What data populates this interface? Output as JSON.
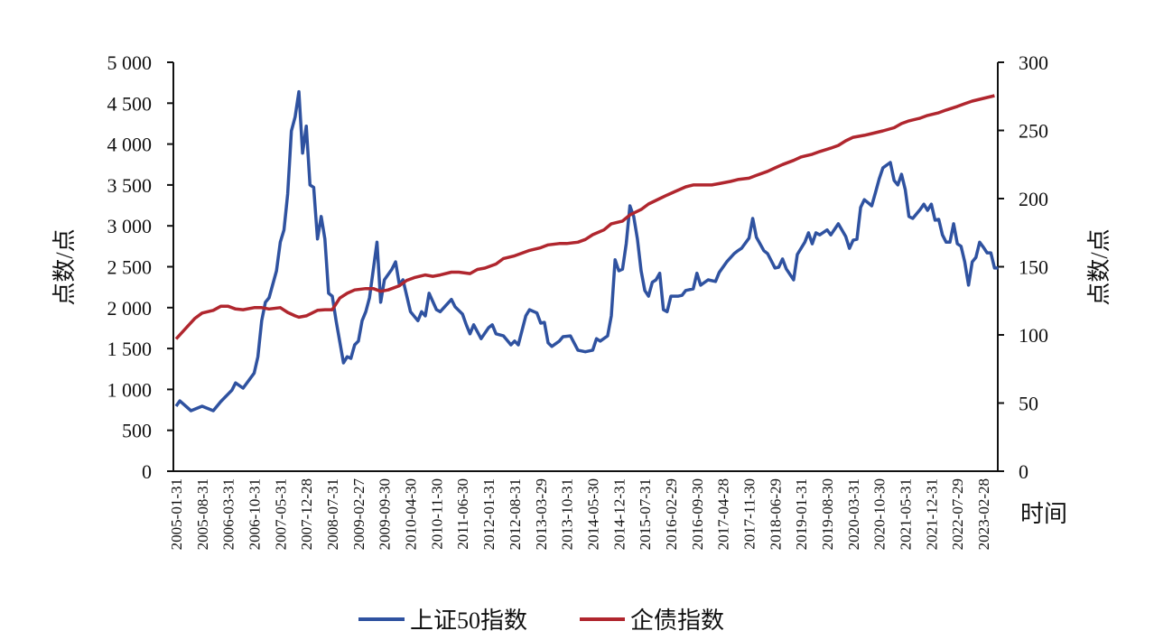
{
  "chart_data": {
    "type": "line",
    "title": "",
    "xlabel": "时间",
    "ylabel_left": "点数/点",
    "ylabel_right": "点数/点",
    "ylim_left": [
      0,
      5000
    ],
    "ylim_right": [
      0,
      300
    ],
    "xlim": [
      "2005-01",
      "2023-06"
    ],
    "grid": false,
    "legend_position": "bottom",
    "yticks_left": [
      "0",
      "500",
      "1 000",
      "1 500",
      "2 000",
      "2 500",
      "3 000",
      "3 500",
      "4 000",
      "4 500",
      "5 000"
    ],
    "yticks_right": [
      "0",
      "50",
      "100",
      "150",
      "200",
      "250",
      "300"
    ],
    "xticks": [
      "2005-01-31",
      "2005-08-31",
      "2006-03-31",
      "2006-10-31",
      "2007-05-31",
      "2007-12-28",
      "2008-07-31",
      "2009-02-27",
      "2009-09-30",
      "2010-04-30",
      "2010-11-30",
      "2011-06-30",
      "2012-01-31",
      "2012-08-31",
      "2013-03-29",
      "2013-10-31",
      "2014-05-30",
      "2014-12-31",
      "2015-07-31",
      "2016-02-29",
      "2016-09-30",
      "2017-04-28",
      "2017-11-30",
      "2018-06-29",
      "2019-01-31",
      "2019-08-30",
      "2020-03-31",
      "2020-10-30",
      "2021-05-31",
      "2021-12-31",
      "2022-07-29",
      "2023-02-28"
    ],
    "series": [
      {
        "name": "上证50指数",
        "axis": "left",
        "color": "#2f52a0",
        "points": [
          [
            "2005-01",
            795
          ],
          [
            "2005-02",
            860
          ],
          [
            "2005-05",
            740
          ],
          [
            "2005-08",
            795
          ],
          [
            "2005-11",
            740
          ],
          [
            "2006-01",
            850
          ],
          [
            "2006-04",
            990
          ],
          [
            "2006-05",
            1080
          ],
          [
            "2006-07",
            1015
          ],
          [
            "2006-10",
            1200
          ],
          [
            "2006-11",
            1400
          ],
          [
            "2006-12",
            1840
          ],
          [
            "2007-01",
            2065
          ],
          [
            "2007-02",
            2120
          ],
          [
            "2007-04",
            2450
          ],
          [
            "2007-05",
            2800
          ],
          [
            "2007-06",
            2950
          ],
          [
            "2007-07",
            3390
          ],
          [
            "2007-08",
            4160
          ],
          [
            "2007-09",
            4330
          ],
          [
            "2007-10",
            4640
          ],
          [
            "2007-11",
            3890
          ],
          [
            "2007-12",
            4220
          ],
          [
            "2008-01",
            3500
          ],
          [
            "2008-02",
            3470
          ],
          [
            "2008-03",
            2840
          ],
          [
            "2008-04",
            3115
          ],
          [
            "2008-05",
            2840
          ],
          [
            "2008-06",
            2175
          ],
          [
            "2008-07",
            2140
          ],
          [
            "2008-08",
            1840
          ],
          [
            "2008-10",
            1325
          ],
          [
            "2008-11",
            1400
          ],
          [
            "2008-12",
            1380
          ],
          [
            "2009-01",
            1545
          ],
          [
            "2009-02",
            1590
          ],
          [
            "2009-03",
            1840
          ],
          [
            "2009-04",
            1950
          ],
          [
            "2009-05",
            2120
          ],
          [
            "2009-07",
            2800
          ],
          [
            "2009-08",
            2065
          ],
          [
            "2009-09",
            2340
          ],
          [
            "2009-11",
            2470
          ],
          [
            "2009-12",
            2560
          ],
          [
            "2010-01",
            2285
          ],
          [
            "2010-02",
            2340
          ],
          [
            "2010-04",
            1950
          ],
          [
            "2010-06",
            1840
          ],
          [
            "2010-07",
            1950
          ],
          [
            "2010-08",
            1900
          ],
          [
            "2010-09",
            2175
          ],
          [
            "2010-11",
            1975
          ],
          [
            "2010-12",
            1950
          ],
          [
            "2011-03",
            2100
          ],
          [
            "2011-04",
            2010
          ],
          [
            "2011-06",
            1920
          ],
          [
            "2011-07",
            1790
          ],
          [
            "2011-08",
            1680
          ],
          [
            "2011-09",
            1790
          ],
          [
            "2011-11",
            1620
          ],
          [
            "2012-01",
            1755
          ],
          [
            "2012-02",
            1790
          ],
          [
            "2012-03",
            1680
          ],
          [
            "2012-05",
            1655
          ],
          [
            "2012-07",
            1545
          ],
          [
            "2012-08",
            1590
          ],
          [
            "2012-09",
            1545
          ],
          [
            "2012-11",
            1900
          ],
          [
            "2012-12",
            1975
          ],
          [
            "2013-02",
            1935
          ],
          [
            "2013-03",
            1810
          ],
          [
            "2013-04",
            1820
          ],
          [
            "2013-05",
            1570
          ],
          [
            "2013-06",
            1525
          ],
          [
            "2013-08",
            1590
          ],
          [
            "2013-09",
            1645
          ],
          [
            "2013-11",
            1655
          ],
          [
            "2014-01",
            1480
          ],
          [
            "2014-03",
            1460
          ],
          [
            "2014-05",
            1480
          ],
          [
            "2014-06",
            1620
          ],
          [
            "2014-07",
            1590
          ],
          [
            "2014-09",
            1655
          ],
          [
            "2014-10",
            1900
          ],
          [
            "2014-11",
            2585
          ],
          [
            "2014-12",
            2450
          ],
          [
            "2015-01",
            2470
          ],
          [
            "2015-02",
            2780
          ],
          [
            "2015-03",
            3245
          ],
          [
            "2015-04",
            3115
          ],
          [
            "2015-05",
            2840
          ],
          [
            "2015-06",
            2450
          ],
          [
            "2015-07",
            2210
          ],
          [
            "2015-08",
            2140
          ],
          [
            "2015-09",
            2310
          ],
          [
            "2015-10",
            2340
          ],
          [
            "2015-11",
            2420
          ],
          [
            "2015-12",
            1975
          ],
          [
            "2016-01",
            1950
          ],
          [
            "2016-02",
            2140
          ],
          [
            "2016-04",
            2140
          ],
          [
            "2016-05",
            2150
          ],
          [
            "2016-06",
            2210
          ],
          [
            "2016-08",
            2230
          ],
          [
            "2016-09",
            2420
          ],
          [
            "2016-10",
            2275
          ],
          [
            "2016-12",
            2340
          ],
          [
            "2017-02",
            2320
          ],
          [
            "2017-03",
            2430
          ],
          [
            "2017-05",
            2560
          ],
          [
            "2017-07",
            2660
          ],
          [
            "2017-08",
            2695
          ],
          [
            "2017-09",
            2725
          ],
          [
            "2017-11",
            2850
          ],
          [
            "2017-12",
            3090
          ],
          [
            "2018-01",
            2860
          ],
          [
            "2018-03",
            2695
          ],
          [
            "2018-04",
            2660
          ],
          [
            "2018-06",
            2485
          ],
          [
            "2018-07",
            2495
          ],
          [
            "2018-08",
            2595
          ],
          [
            "2018-09",
            2475
          ],
          [
            "2018-11",
            2340
          ],
          [
            "2018-12",
            2650
          ],
          [
            "2019-02",
            2800
          ],
          [
            "2019-03",
            2915
          ],
          [
            "2019-04",
            2780
          ],
          [
            "2019-05",
            2915
          ],
          [
            "2019-06",
            2890
          ],
          [
            "2019-08",
            2950
          ],
          [
            "2019-09",
            2890
          ],
          [
            "2019-11",
            3025
          ],
          [
            "2020-01",
            2870
          ],
          [
            "2020-02",
            2725
          ],
          [
            "2020-03",
            2825
          ],
          [
            "2020-04",
            2835
          ],
          [
            "2020-05",
            3225
          ],
          [
            "2020-06",
            3320
          ],
          [
            "2020-08",
            3245
          ],
          [
            "2020-09",
            3410
          ],
          [
            "2020-10",
            3575
          ],
          [
            "2020-11",
            3710
          ],
          [
            "2021-01",
            3775
          ],
          [
            "2021-02",
            3555
          ],
          [
            "2021-03",
            3500
          ],
          [
            "2021-04",
            3630
          ],
          [
            "2021-05",
            3445
          ],
          [
            "2021-06",
            3115
          ],
          [
            "2021-07",
            3090
          ],
          [
            "2021-09",
            3200
          ],
          [
            "2021-10",
            3265
          ],
          [
            "2021-11",
            3190
          ],
          [
            "2021-12",
            3265
          ],
          [
            "2022-01",
            3070
          ],
          [
            "2022-02",
            3080
          ],
          [
            "2022-03",
            2890
          ],
          [
            "2022-04",
            2800
          ],
          [
            "2022-05",
            2800
          ],
          [
            "2022-06",
            3025
          ],
          [
            "2022-07",
            2780
          ],
          [
            "2022-08",
            2750
          ],
          [
            "2022-09",
            2560
          ],
          [
            "2022-10",
            2275
          ],
          [
            "2022-11",
            2560
          ],
          [
            "2022-12",
            2615
          ],
          [
            "2023-01",
            2800
          ],
          [
            "2023-02",
            2740
          ],
          [
            "2023-03",
            2670
          ],
          [
            "2023-04",
            2670
          ],
          [
            "2023-05",
            2485
          ],
          [
            "2023-06",
            2485
          ]
        ]
      },
      {
        "name": "企债指数",
        "axis": "right",
        "color": "#b0262e",
        "points": [
          [
            "2005-01",
            97
          ],
          [
            "2005-03",
            103
          ],
          [
            "2005-06",
            112
          ],
          [
            "2005-08",
            116
          ],
          [
            "2005-11",
            118
          ],
          [
            "2006-01",
            121
          ],
          [
            "2006-03",
            121
          ],
          [
            "2006-05",
            119
          ],
          [
            "2006-07",
            118.5
          ],
          [
            "2006-10",
            120
          ],
          [
            "2006-12",
            120
          ],
          [
            "2007-02",
            119
          ],
          [
            "2007-05",
            120
          ],
          [
            "2007-07",
            116.5
          ],
          [
            "2007-09",
            114
          ],
          [
            "2007-10",
            113
          ],
          [
            "2007-12",
            114
          ],
          [
            "2008-03",
            118
          ],
          [
            "2008-05",
            118.5
          ],
          [
            "2008-07",
            118.5
          ],
          [
            "2008-09",
            127
          ],
          [
            "2008-11",
            130.5
          ],
          [
            "2009-01",
            133
          ],
          [
            "2009-04",
            134
          ],
          [
            "2009-06",
            134
          ],
          [
            "2009-08",
            132
          ],
          [
            "2009-10",
            133
          ],
          [
            "2010-01",
            136
          ],
          [
            "2010-03",
            140
          ],
          [
            "2010-05",
            142
          ],
          [
            "2010-08",
            144
          ],
          [
            "2010-10",
            143
          ],
          [
            "2010-12",
            144
          ],
          [
            "2011-03",
            146
          ],
          [
            "2011-05",
            146
          ],
          [
            "2011-08",
            145
          ],
          [
            "2011-10",
            148
          ],
          [
            "2011-12",
            149
          ],
          [
            "2012-03",
            152
          ],
          [
            "2012-05",
            156
          ],
          [
            "2012-08",
            158
          ],
          [
            "2012-10",
            160
          ],
          [
            "2012-12",
            162
          ],
          [
            "2013-03",
            164
          ],
          [
            "2013-05",
            166
          ],
          [
            "2013-08",
            167
          ],
          [
            "2013-10",
            167
          ],
          [
            "2014-01",
            168
          ],
          [
            "2014-03",
            170
          ],
          [
            "2014-05",
            173.5
          ],
          [
            "2014-08",
            177
          ],
          [
            "2014-10",
            181.5
          ],
          [
            "2015-01",
            183.5
          ],
          [
            "2015-03",
            188
          ],
          [
            "2015-06",
            192
          ],
          [
            "2015-08",
            196
          ],
          [
            "2015-11",
            200
          ],
          [
            "2016-01",
            202.6
          ],
          [
            "2016-03",
            205
          ],
          [
            "2016-06",
            208.6
          ],
          [
            "2016-08",
            210
          ],
          [
            "2016-11",
            210
          ],
          [
            "2017-01",
            210
          ],
          [
            "2017-03",
            211
          ],
          [
            "2017-06",
            212.6
          ],
          [
            "2017-08",
            214
          ],
          [
            "2017-11",
            215
          ],
          [
            "2018-01",
            217
          ],
          [
            "2018-04",
            220
          ],
          [
            "2018-06",
            222.5
          ],
          [
            "2018-08",
            225
          ],
          [
            "2018-11",
            228
          ],
          [
            "2019-01",
            230.5
          ],
          [
            "2019-04",
            232.5
          ],
          [
            "2019-06",
            234.5
          ],
          [
            "2019-09",
            237
          ],
          [
            "2019-11",
            239
          ],
          [
            "2020-01",
            242.4
          ],
          [
            "2020-03",
            245
          ],
          [
            "2020-06",
            246.4
          ],
          [
            "2020-08",
            247.7
          ],
          [
            "2020-11",
            249.7
          ],
          [
            "2021-02",
            252
          ],
          [
            "2021-04",
            255
          ],
          [
            "2021-06",
            257
          ],
          [
            "2021-09",
            259
          ],
          [
            "2021-11",
            261
          ],
          [
            "2022-02",
            263
          ],
          [
            "2022-04",
            265
          ],
          [
            "2022-07",
            267.6
          ],
          [
            "2022-09",
            269.6
          ],
          [
            "2022-11",
            271.5
          ],
          [
            "2023-02",
            273.5
          ],
          [
            "2023-05",
            275.5
          ]
        ]
      }
    ]
  }
}
